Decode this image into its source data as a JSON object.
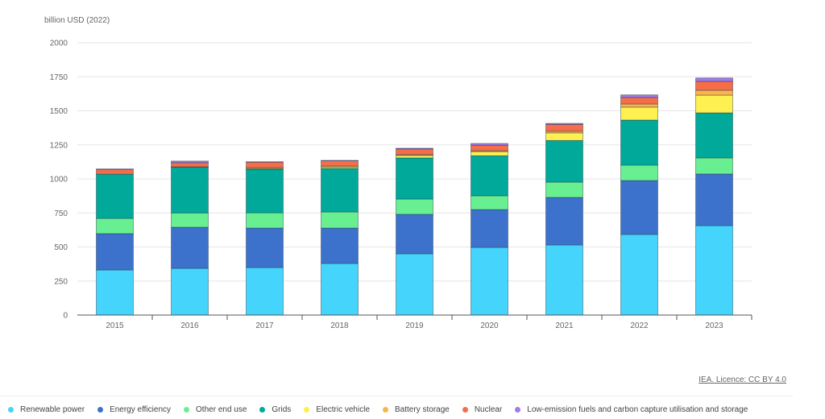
{
  "chart_data": {
    "type": "bar",
    "stacked": true,
    "title": "",
    "ylabel": "billion USD (2022)",
    "xlabel": "",
    "ylim": [
      0,
      2000
    ],
    "yticks": [
      0,
      250,
      500,
      750,
      1000,
      1250,
      1500,
      1750,
      2000
    ],
    "grid": true,
    "legend_position": "bottom",
    "categories": [
      "2015",
      "2016",
      "2017",
      "2018",
      "2019",
      "2020",
      "2021",
      "2022",
      "2023"
    ],
    "series": [
      {
        "name": "Renewable power",
        "color": "#45d4fc",
        "values": [
          331,
          343,
          349,
          379,
          450,
          497,
          515,
          592,
          657
        ]
      },
      {
        "name": "Energy efficiency",
        "color": "#3d72cc",
        "values": [
          267,
          302,
          290,
          260,
          290,
          278,
          349,
          396,
          379
        ]
      },
      {
        "name": "Other end use",
        "color": "#68ef92",
        "values": [
          112,
          105,
          112,
          118,
          112,
          101,
          112,
          113,
          118
        ]
      },
      {
        "name": "Grids",
        "color": "#00a99a",
        "values": [
          325,
          335,
          320,
          320,
          302,
          294,
          306,
          331,
          331
        ]
      },
      {
        "name": "Electric vehicle",
        "color": "#fdf050",
        "values": [
          0,
          2,
          5,
          10,
          18,
          30,
          56,
          95,
          130
        ]
      },
      {
        "name": "Battery storage",
        "color": "#fbb44a",
        "values": [
          0,
          2,
          7,
          8,
          6,
          7,
          12,
          23,
          36
        ]
      },
      {
        "name": "Nuclear",
        "color": "#f66d4a",
        "values": [
          35,
          30,
          40,
          38,
          42,
          40,
          50,
          48,
          65
        ]
      },
      {
        "name": "Low-emission fuels and carbon capture utilisation and storage",
        "color": "#a27be6",
        "values": [
          3,
          12,
          3,
          3,
          5,
          13,
          8,
          19,
          25
        ]
      }
    ]
  },
  "source": {
    "licence_link": "IEA. Licence: CC BY 4.0"
  }
}
